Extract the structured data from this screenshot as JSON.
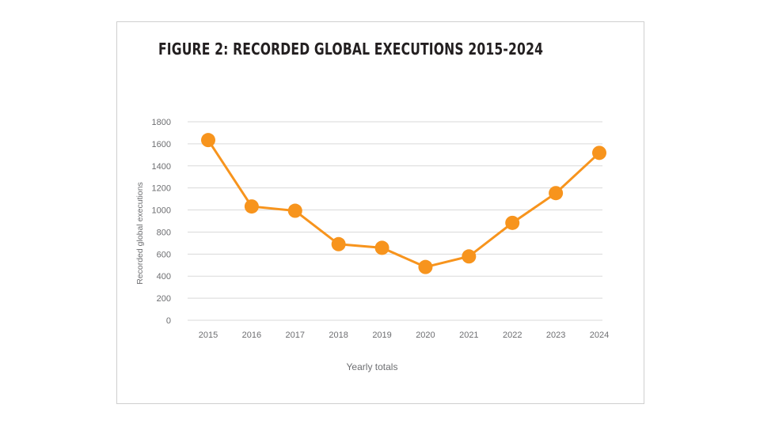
{
  "chart_data": {
    "type": "line",
    "title": "FIGURE 2: RECORDED GLOBAL EXECUTIONS 2015-2024",
    "xlabel": "Yearly totals",
    "ylabel": "Recorded global executions",
    "categories": [
      "2015",
      "2016",
      "2017",
      "2018",
      "2019",
      "2020",
      "2021",
      "2022",
      "2023",
      "2024"
    ],
    "series": [
      {
        "values": [
          1634,
          1032,
          993,
          690,
          657,
          483,
          579,
          883,
          1153,
          1518
        ]
      }
    ],
    "ylim": [
      0,
      1800
    ],
    "yticks": [
      0,
      200,
      400,
      600,
      800,
      1000,
      1200,
      1400,
      1600,
      1800
    ],
    "grid": true,
    "legend": "none",
    "colors": {
      "line": "#f7941d",
      "grid": "#d9d9d9",
      "text": "#6d6e71"
    }
  }
}
